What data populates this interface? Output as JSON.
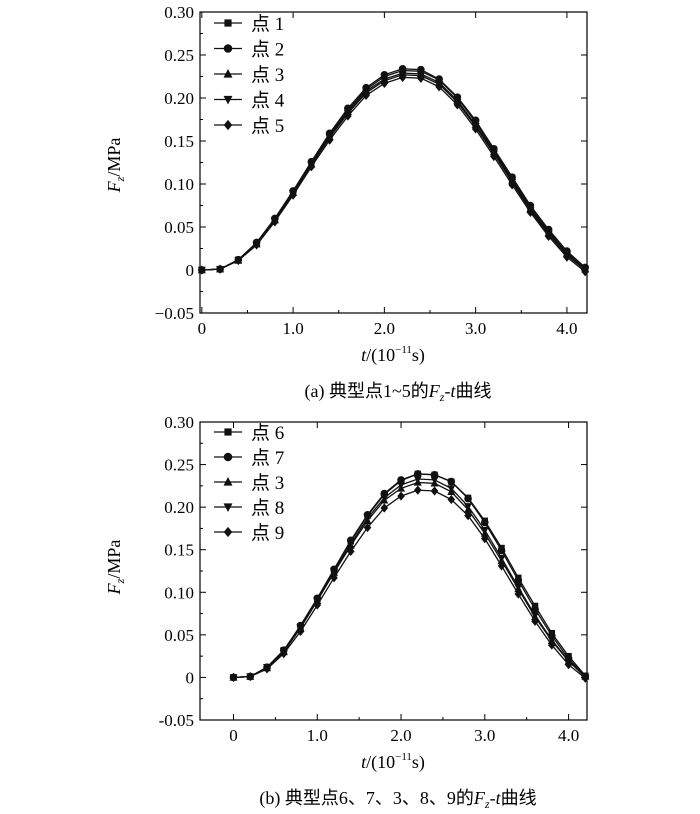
{
  "charts": [
    {
      "id": "a",
      "caption": {
        "prefix": "(a) 典型点1~5的",
        "var": "F",
        "sub": "z",
        "suffix": "-",
        "tvar": "t",
        "tail": "曲线"
      },
      "ylabel": {
        "var": "F",
        "sub": "z",
        "unit": "/MPa"
      },
      "xlabel": {
        "var": "t",
        "unit_pre": "/(10",
        "sup": "−11",
        "unit_post": "s)"
      },
      "xticks": [
        "0",
        "1.0",
        "2.0",
        "3.0",
        "4.0"
      ],
      "yticks": [
        "−0.05",
        "0",
        "0.05",
        "0.10",
        "0.15",
        "0.20",
        "0.25",
        "0.30"
      ],
      "legend": [
        {
          "label": "点 1",
          "marker": "square"
        },
        {
          "label": "点 2",
          "marker": "circle"
        },
        {
          "label": "点 3",
          "marker": "triangle-up"
        },
        {
          "label": "点 4",
          "marker": "triangle-down"
        },
        {
          "label": "点 5",
          "marker": "diamond"
        }
      ]
    },
    {
      "id": "b",
      "caption": {
        "prefix": "(b) 典型点6、7、3、8、9的",
        "var": "F",
        "sub": "z",
        "suffix": "-",
        "tvar": "t",
        "tail": "曲线"
      },
      "ylabel": {
        "var": "F",
        "sub": "z",
        "unit": "/MPa"
      },
      "xlabel": {
        "var": "t",
        "unit_pre": "/(10",
        "sup": "−11",
        "unit_post": "s)"
      },
      "xticks": [
        "0",
        "1.0",
        "2.0",
        "3.0",
        "4.0"
      ],
      "yticks": [
        "-0.05",
        "0",
        "0.05",
        "0.10",
        "0.15",
        "0.20",
        "0.25",
        "0.30"
      ],
      "legend": [
        {
          "label": "点 6",
          "marker": "square"
        },
        {
          "label": "点 7",
          "marker": "circle"
        },
        {
          "label": "点 3",
          "marker": "triangle-up"
        },
        {
          "label": "点 8",
          "marker": "triangle-down"
        },
        {
          "label": "点 9",
          "marker": "diamond"
        }
      ]
    }
  ],
  "chart_data": [
    {
      "type": "line",
      "xlim": [
        -0.02,
        4.22
      ],
      "ylim": [
        -0.05,
        0.3
      ],
      "x": [
        0,
        0.2,
        0.4,
        0.6,
        0.8,
        1.0,
        1.2,
        1.4,
        1.6,
        1.8,
        2.0,
        2.2,
        2.4,
        2.6,
        2.8,
        3.0,
        3.2,
        3.4,
        3.6,
        3.8,
        4.0,
        4.2
      ],
      "series": [
        {
          "name": "点 1",
          "marker": "square",
          "values": [
            0,
            0.001,
            0.012,
            0.031,
            0.059,
            0.091,
            0.124,
            0.157,
            0.186,
            0.21,
            0.225,
            0.232,
            0.231,
            0.221,
            0.2,
            0.172,
            0.139,
            0.106,
            0.073,
            0.045,
            0.02,
            0.002
          ]
        },
        {
          "name": "点 2",
          "marker": "circle",
          "values": [
            0,
            0.001,
            0.012,
            0.032,
            0.06,
            0.092,
            0.126,
            0.159,
            0.188,
            0.212,
            0.227,
            0.234,
            0.233,
            0.222,
            0.201,
            0.174,
            0.141,
            0.108,
            0.075,
            0.047,
            0.022,
            0.003
          ]
        },
        {
          "name": "点 3",
          "marker": "triangle-up",
          "values": [
            0,
            0.001,
            0.011,
            0.03,
            0.058,
            0.09,
            0.123,
            0.155,
            0.184,
            0.208,
            0.222,
            0.229,
            0.228,
            0.218,
            0.197,
            0.169,
            0.137,
            0.104,
            0.071,
            0.043,
            0.019,
            0.001
          ]
        },
        {
          "name": "点 4",
          "marker": "triangle-down",
          "values": [
            0,
            0.001,
            0.011,
            0.03,
            0.057,
            0.089,
            0.122,
            0.154,
            0.182,
            0.206,
            0.22,
            0.227,
            0.226,
            0.216,
            0.195,
            0.167,
            0.135,
            0.102,
            0.069,
            0.041,
            0.017,
            0.0
          ]
        },
        {
          "name": "点 5",
          "marker": "diamond",
          "values": [
            0,
            0.001,
            0.011,
            0.029,
            0.056,
            0.087,
            0.12,
            0.151,
            0.179,
            0.203,
            0.217,
            0.224,
            0.223,
            0.213,
            0.192,
            0.164,
            0.132,
            0.099,
            0.067,
            0.039,
            0.015,
            -0.002
          ]
        }
      ]
    },
    {
      "type": "line",
      "xlim": [
        -0.4,
        4.22
      ],
      "ylim": [
        -0.05,
        0.3
      ],
      "x": [
        0,
        0.2,
        0.4,
        0.6,
        0.8,
        1.0,
        1.2,
        1.4,
        1.6,
        1.8,
        2.0,
        2.2,
        2.4,
        2.6,
        2.8,
        3.0,
        3.2,
        3.4,
        3.6,
        3.8,
        4.0,
        4.2
      ],
      "series": [
        {
          "name": "点 6",
          "marker": "square",
          "values": [
            0,
            0.001,
            0.012,
            0.032,
            0.06,
            0.092,
            0.126,
            0.16,
            0.19,
            0.215,
            0.231,
            0.239,
            0.238,
            0.23,
            0.211,
            0.184,
            0.152,
            0.117,
            0.084,
            0.052,
            0.025,
            0.002
          ]
        },
        {
          "name": "点 7",
          "marker": "circle",
          "values": [
            0,
            0.001,
            0.012,
            0.032,
            0.061,
            0.093,
            0.127,
            0.161,
            0.191,
            0.216,
            0.232,
            0.239,
            0.238,
            0.23,
            0.21,
            0.182,
            0.149,
            0.114,
            0.08,
            0.049,
            0.022,
            0.001
          ]
        },
        {
          "name": "点 3",
          "marker": "triangle-up",
          "values": [
            0,
            0.001,
            0.011,
            0.03,
            0.058,
            0.09,
            0.123,
            0.155,
            0.184,
            0.208,
            0.222,
            0.229,
            0.228,
            0.218,
            0.197,
            0.169,
            0.137,
            0.104,
            0.071,
            0.043,
            0.019,
            0.001
          ]
        },
        {
          "name": "点 8",
          "marker": "triangle-down",
          "values": [
            0,
            0.001,
            0.012,
            0.031,
            0.059,
            0.091,
            0.124,
            0.157,
            0.187,
            0.211,
            0.226,
            0.233,
            0.232,
            0.222,
            0.201,
            0.173,
            0.14,
            0.106,
            0.073,
            0.044,
            0.02,
            0.0
          ]
        },
        {
          "name": "点 9",
          "marker": "diamond",
          "values": [
            0,
            0.001,
            0.01,
            0.028,
            0.054,
            0.085,
            0.117,
            0.148,
            0.176,
            0.199,
            0.213,
            0.22,
            0.219,
            0.209,
            0.19,
            0.163,
            0.131,
            0.098,
            0.066,
            0.038,
            0.015,
            -0.001
          ]
        }
      ]
    }
  ]
}
